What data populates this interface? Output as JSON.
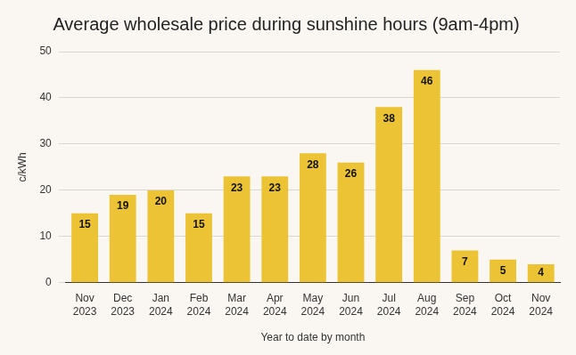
{
  "chart_data": {
    "type": "bar",
    "title": "Average wholesale price during sunshine hours (9am-4pm)",
    "xlabel": "Year to date by month",
    "ylabel": "c/kWh",
    "categories": [
      "Nov 2023",
      "Dec 2023",
      "Jan 2024",
      "Feb 2024",
      "Mar 2024",
      "Apr 2024",
      "May 2024",
      "Jun 2024",
      "Jul 2024",
      "Aug 2024",
      "Sep 2024",
      "Oct 2024",
      "Nov 2024"
    ],
    "values": [
      15,
      19,
      20,
      15,
      23,
      23,
      28,
      26,
      38,
      46,
      7,
      5,
      4
    ],
    "color": "#ebc334",
    "ylim": [
      0,
      50
    ],
    "yticks": [
      0,
      10,
      20,
      30,
      40,
      50
    ],
    "grid": true,
    "data_labels": true
  }
}
